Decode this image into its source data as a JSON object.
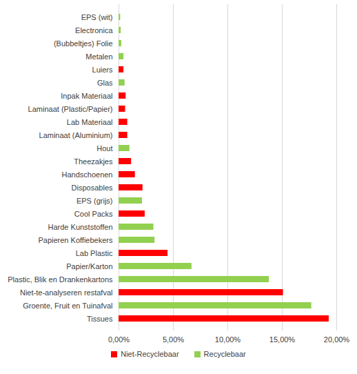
{
  "chart_data": {
    "type": "bar",
    "orientation": "horizontal",
    "grid": true,
    "legend": "bottom",
    "categories": [
      "EPS (wit)",
      "Electronica",
      "(Bubbeltjes) Folie",
      "Metalen",
      "Luiers",
      "Glas",
      "Inpak Materiaal",
      "Laminaat (Plastic/Papier)",
      "Lab Materiaal",
      "Laminaat (Aluminium)",
      "Hout",
      "Theezakjes",
      "Handschoenen",
      "Disposables",
      "EPS (grijs)",
      "Cool Packs",
      "Harde Kunststoffen",
      "Papieren Koffiebekers",
      "Lab Plastic",
      "Papier/Karton",
      "Plastic, Blik en Drankenkartons",
      "Niet-te-analyseren restafval",
      "Groente, Fruit en Tuinafval",
      "Tissues"
    ],
    "series": [
      {
        "name": "Niet-Recyclebaar",
        "color": "#ff0000",
        "values": [
          null,
          null,
          null,
          null,
          0.45,
          null,
          0.65,
          0.6,
          0.8,
          0.8,
          null,
          1.15,
          1.5,
          2.2,
          null,
          2.4,
          null,
          null,
          4.5,
          null,
          null,
          15.1,
          null,
          19.3
        ]
      },
      {
        "name": "Recyclebaar",
        "color": "#92d050",
        "values": [
          0.15,
          0.2,
          0.25,
          0.45,
          null,
          0.55,
          null,
          null,
          null,
          null,
          1.0,
          null,
          null,
          null,
          2.15,
          null,
          3.2,
          3.3,
          null,
          6.7,
          13.8,
          null,
          17.7,
          null
        ]
      }
    ],
    "xlim": [
      0,
      20
    ],
    "xticks": [
      {
        "value": 0,
        "label": "0,00%"
      },
      {
        "value": 5,
        "label": "5,00%"
      },
      {
        "value": 10,
        "label": "10,00%"
      },
      {
        "value": 15,
        "label": "15,00%"
      },
      {
        "value": 20,
        "label": "20,00%"
      }
    ]
  }
}
